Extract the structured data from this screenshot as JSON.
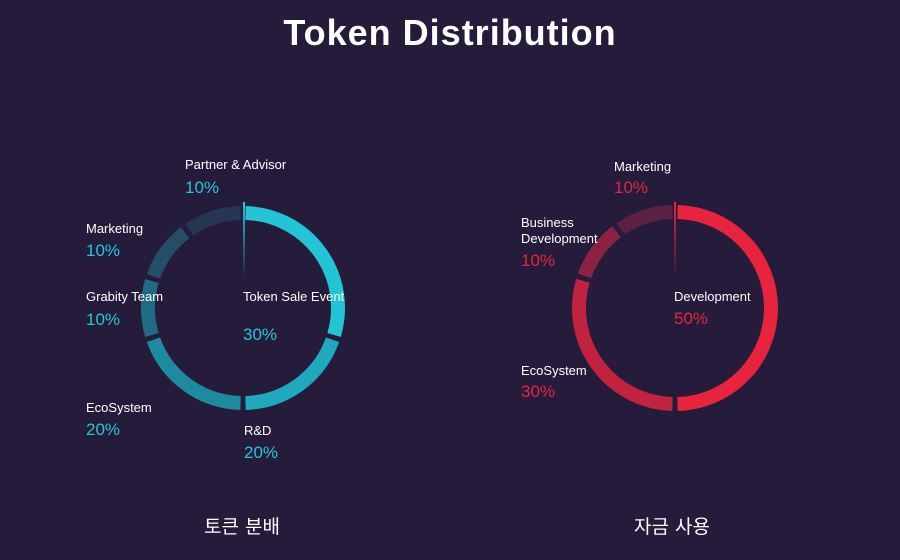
{
  "title": "Token Distribution",
  "chart_data": [
    {
      "type": "pie",
      "caption": "토큰 분배",
      "accent": "#26c6da",
      "slices": [
        {
          "label": "Token Sale Event",
          "value": 30,
          "pct_text": "30%",
          "color": "#22c4d6"
        },
        {
          "label": "R&D",
          "value": 20,
          "pct_text": "20%",
          "color": "#1fa9bd"
        },
        {
          "label": "EcoSystem",
          "value": 20,
          "pct_text": "20%",
          "color": "#1e8aa0"
        },
        {
          "label": "Grabity Team",
          "value": 10,
          "pct_text": "10%",
          "color": "#216a84"
        },
        {
          "label": "Marketing",
          "value": 10,
          "pct_text": "10%",
          "color": "#244d68"
        },
        {
          "label": "Partner & Advisor",
          "value": 10,
          "pct_text": "10%",
          "color": "#253552"
        }
      ]
    },
    {
      "type": "pie",
      "caption": "자금 사용",
      "accent": "#e8253f",
      "slices": [
        {
          "label": "Development",
          "value": 50,
          "pct_text": "50%",
          "color": "#e8233e"
        },
        {
          "label": "EcoSystem",
          "value": 30,
          "pct_text": "30%",
          "color": "#c02240"
        },
        {
          "label": "Business Development",
          "value": 10,
          "pct_text": "10%",
          "color": "#8c2242"
        },
        {
          "label": "Marketing",
          "value": 10,
          "pct_text": "10%",
          "color": "#5c2142"
        }
      ]
    }
  ]
}
